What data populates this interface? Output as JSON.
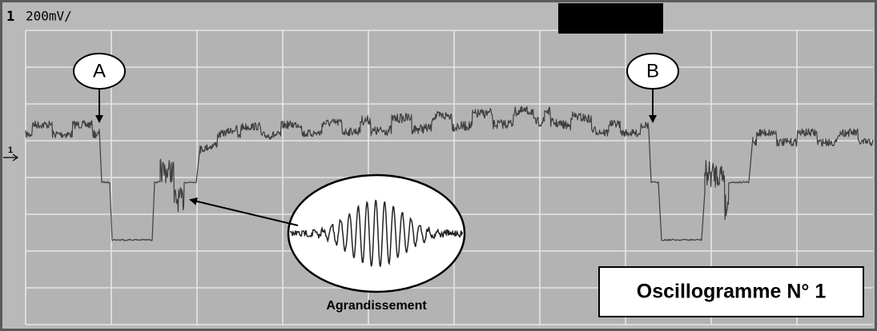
{
  "header": {
    "channel": "1",
    "scale": "200mV/"
  },
  "markers": {
    "a": "A",
    "b": "B",
    "trace": "1"
  },
  "inset_label": "Agrandissement",
  "caption": "Oscillogramme N° 1"
}
